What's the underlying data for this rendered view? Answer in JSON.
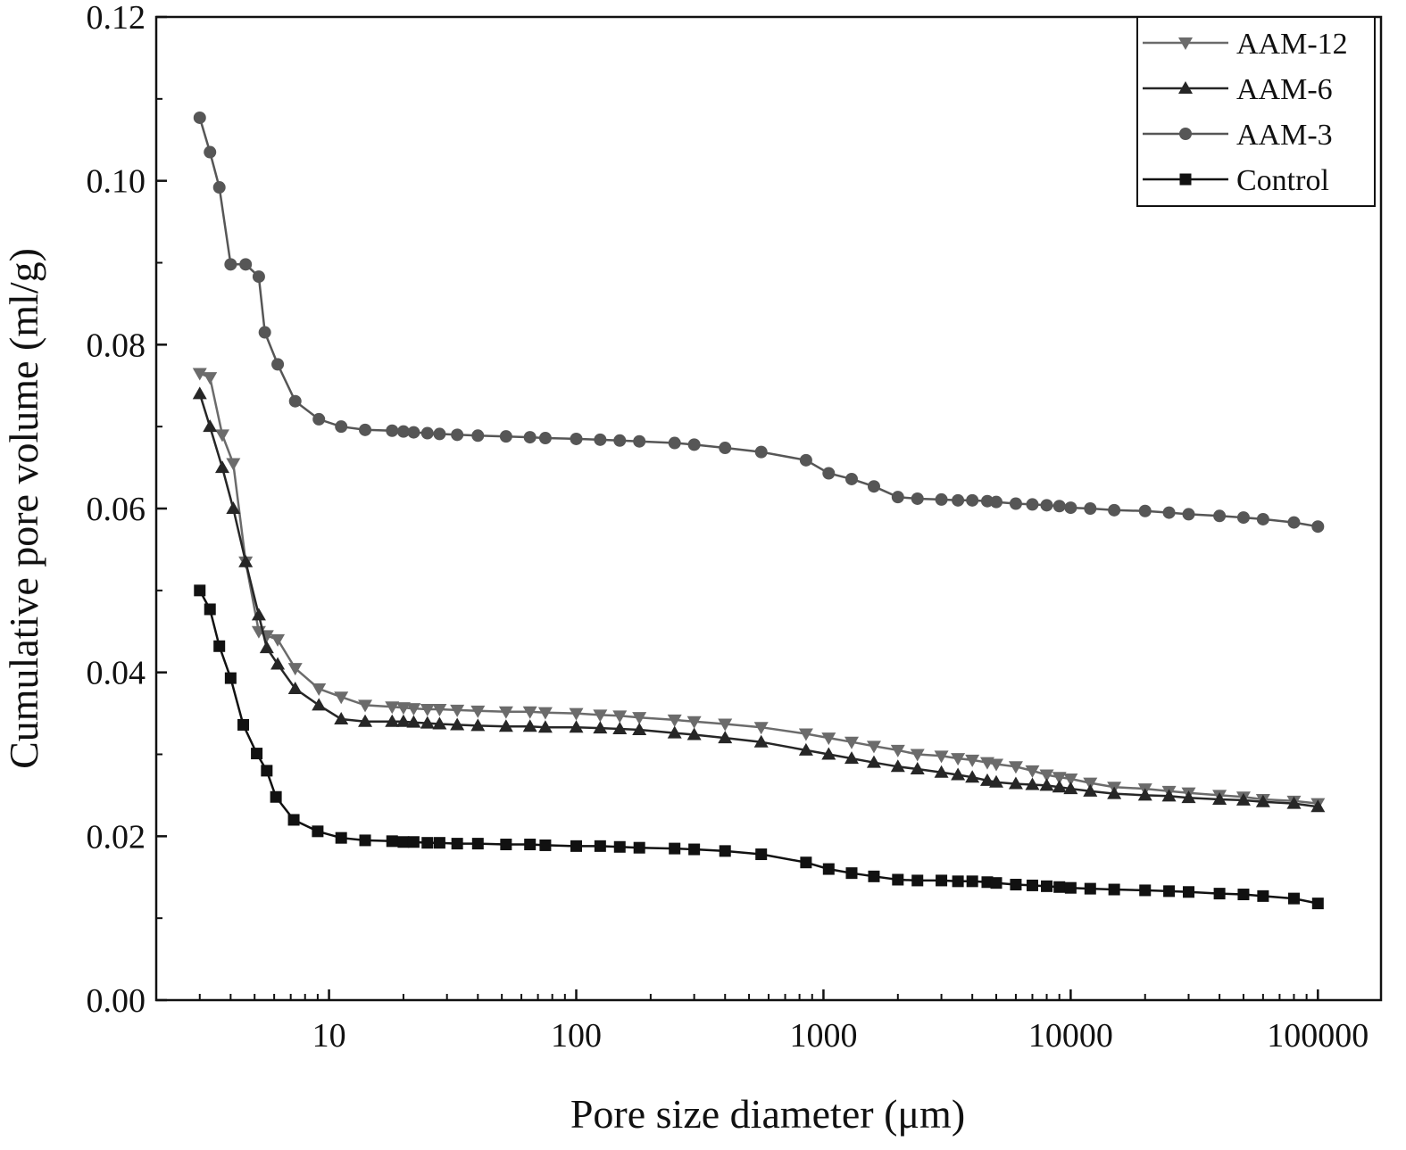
{
  "chart_data": {
    "type": "line",
    "xlabel": "Pore size diameter (μm)",
    "ylabel": "Cumulative pore volume (ml/g)",
    "x_scale": "log",
    "xlim": [
      2,
      180000
    ],
    "ylim": [
      0,
      0.12
    ],
    "x_ticks": [
      10,
      100,
      1000,
      10000,
      100000
    ],
    "x_tick_labels": [
      "10",
      "100",
      "1000",
      "10000",
      "100000"
    ],
    "y_ticks": [
      0,
      0.02,
      0.04,
      0.06,
      0.08,
      0.1,
      0.12
    ],
    "y_tick_labels": [
      "0.00",
      "0.02",
      "0.04",
      "0.06",
      "0.08",
      "0.10",
      "0.12"
    ],
    "grid": false,
    "legend_position": "top-right",
    "series": [
      {
        "name": "AAM-12",
        "marker": "triangle-down",
        "color": "#6b6b6b",
        "x": [
          3.0,
          3.3,
          3.7,
          4.1,
          4.6,
          5.2,
          5.6,
          6.2,
          7.3,
          9.1,
          11.2,
          14,
          18,
          20,
          22,
          25,
          28,
          33,
          40,
          52,
          65,
          75,
          100,
          125,
          150,
          180,
          250,
          300,
          400,
          560,
          850,
          1050,
          1300,
          1600,
          2000,
          2400,
          3000,
          3500,
          4000,
          4600,
          5000,
          6000,
          7000,
          8000,
          9000,
          10000,
          12000,
          15000,
          20000,
          25000,
          30000,
          40000,
          50000,
          60000,
          80000,
          100000
        ],
        "y": [
          0.0765,
          0.076,
          0.069,
          0.0655,
          0.0535,
          0.045,
          0.0445,
          0.044,
          0.0405,
          0.038,
          0.037,
          0.036,
          0.0358,
          0.0357,
          0.0356,
          0.0355,
          0.0355,
          0.0354,
          0.0353,
          0.0352,
          0.0352,
          0.0351,
          0.035,
          0.0348,
          0.0347,
          0.0345,
          0.0342,
          0.034,
          0.0337,
          0.0333,
          0.0325,
          0.032,
          0.0315,
          0.031,
          0.0305,
          0.03,
          0.0298,
          0.0295,
          0.0293,
          0.029,
          0.0288,
          0.0285,
          0.028,
          0.0275,
          0.0272,
          0.027,
          0.0265,
          0.026,
          0.0258,
          0.0255,
          0.0253,
          0.025,
          0.0248,
          0.0245,
          0.0243,
          0.024
        ]
      },
      {
        "name": "AAM-6",
        "marker": "triangle-up",
        "color": "#262626",
        "x": [
          3.0,
          3.3,
          3.7,
          4.1,
          4.6,
          5.2,
          5.6,
          6.2,
          7.3,
          9.1,
          11.2,
          14,
          18,
          20,
          22,
          25,
          28,
          33,
          40,
          52,
          65,
          75,
          100,
          125,
          150,
          180,
          250,
          300,
          400,
          560,
          850,
          1050,
          1300,
          1600,
          2000,
          2400,
          3000,
          3500,
          4000,
          4600,
          5000,
          6000,
          7000,
          8000,
          9000,
          10000,
          12000,
          15000,
          20000,
          25000,
          30000,
          40000,
          50000,
          60000,
          80000,
          100000
        ],
        "y": [
          0.074,
          0.07,
          0.065,
          0.06,
          0.0535,
          0.047,
          0.043,
          0.041,
          0.038,
          0.036,
          0.0343,
          0.034,
          0.034,
          0.034,
          0.0339,
          0.0338,
          0.0337,
          0.0336,
          0.0335,
          0.0334,
          0.0334,
          0.0333,
          0.0333,
          0.0332,
          0.0331,
          0.033,
          0.0326,
          0.0324,
          0.032,
          0.0315,
          0.0305,
          0.03,
          0.0295,
          0.029,
          0.0285,
          0.0282,
          0.0278,
          0.0275,
          0.0272,
          0.0268,
          0.0266,
          0.0264,
          0.0263,
          0.0262,
          0.026,
          0.0258,
          0.0255,
          0.0252,
          0.025,
          0.0249,
          0.0247,
          0.0245,
          0.0244,
          0.0242,
          0.024,
          0.0236
        ]
      },
      {
        "name": "AAM-3",
        "marker": "circle",
        "color": "#565656",
        "x": [
          3.0,
          3.3,
          3.6,
          4.0,
          4.6,
          5.2,
          5.5,
          6.2,
          7.3,
          9.1,
          11.2,
          14,
          18,
          20,
          22,
          25,
          28,
          33,
          40,
          52,
          65,
          75,
          100,
          125,
          150,
          180,
          250,
          300,
          400,
          560,
          850,
          1050,
          1300,
          1600,
          2000,
          2400,
          3000,
          3500,
          4000,
          4600,
          5000,
          6000,
          7000,
          8000,
          9000,
          10000,
          12000,
          15000,
          20000,
          25000,
          30000,
          40000,
          50000,
          60000,
          80000,
          100000
        ],
        "y": [
          0.1077,
          0.1035,
          0.0992,
          0.0898,
          0.0898,
          0.0883,
          0.0815,
          0.0776,
          0.0731,
          0.0709,
          0.07,
          0.0696,
          0.0695,
          0.0694,
          0.0693,
          0.0692,
          0.0691,
          0.069,
          0.0689,
          0.0688,
          0.0687,
          0.0686,
          0.0685,
          0.0684,
          0.0683,
          0.0682,
          0.068,
          0.0678,
          0.0674,
          0.0669,
          0.0659,
          0.0643,
          0.0636,
          0.0627,
          0.0614,
          0.0612,
          0.0611,
          0.061,
          0.061,
          0.0609,
          0.0608,
          0.0606,
          0.0605,
          0.0604,
          0.0603,
          0.0601,
          0.06,
          0.0598,
          0.0597,
          0.0595,
          0.0593,
          0.0591,
          0.0589,
          0.0587,
          0.0583,
          0.0578
        ]
      },
      {
        "name": "Control",
        "marker": "square",
        "color": "#111111",
        "x": [
          3.0,
          3.3,
          3.6,
          4.0,
          4.5,
          5.1,
          5.6,
          6.1,
          7.2,
          9.0,
          11.2,
          14,
          18,
          20,
          22,
          25,
          28,
          33,
          40,
          52,
          65,
          75,
          100,
          125,
          150,
          180,
          250,
          300,
          400,
          560,
          850,
          1050,
          1300,
          1600,
          2000,
          2400,
          3000,
          3500,
          4000,
          4600,
          5000,
          6000,
          7000,
          8000,
          9000,
          10000,
          12000,
          15000,
          20000,
          25000,
          30000,
          40000,
          50000,
          60000,
          80000,
          100000
        ],
        "y": [
          0.05,
          0.0477,
          0.0432,
          0.0393,
          0.0336,
          0.0301,
          0.028,
          0.0248,
          0.022,
          0.0206,
          0.0198,
          0.0195,
          0.0194,
          0.0193,
          0.0193,
          0.0192,
          0.0192,
          0.0191,
          0.0191,
          0.019,
          0.019,
          0.0189,
          0.0188,
          0.0188,
          0.0187,
          0.0186,
          0.0185,
          0.0184,
          0.0182,
          0.0178,
          0.0168,
          0.016,
          0.0155,
          0.0151,
          0.0147,
          0.0146,
          0.0146,
          0.0145,
          0.0145,
          0.0144,
          0.0143,
          0.0141,
          0.014,
          0.0139,
          0.0138,
          0.0137,
          0.0136,
          0.0135,
          0.0134,
          0.0133,
          0.0132,
          0.013,
          0.0129,
          0.0127,
          0.0124,
          0.0118
        ]
      }
    ]
  }
}
